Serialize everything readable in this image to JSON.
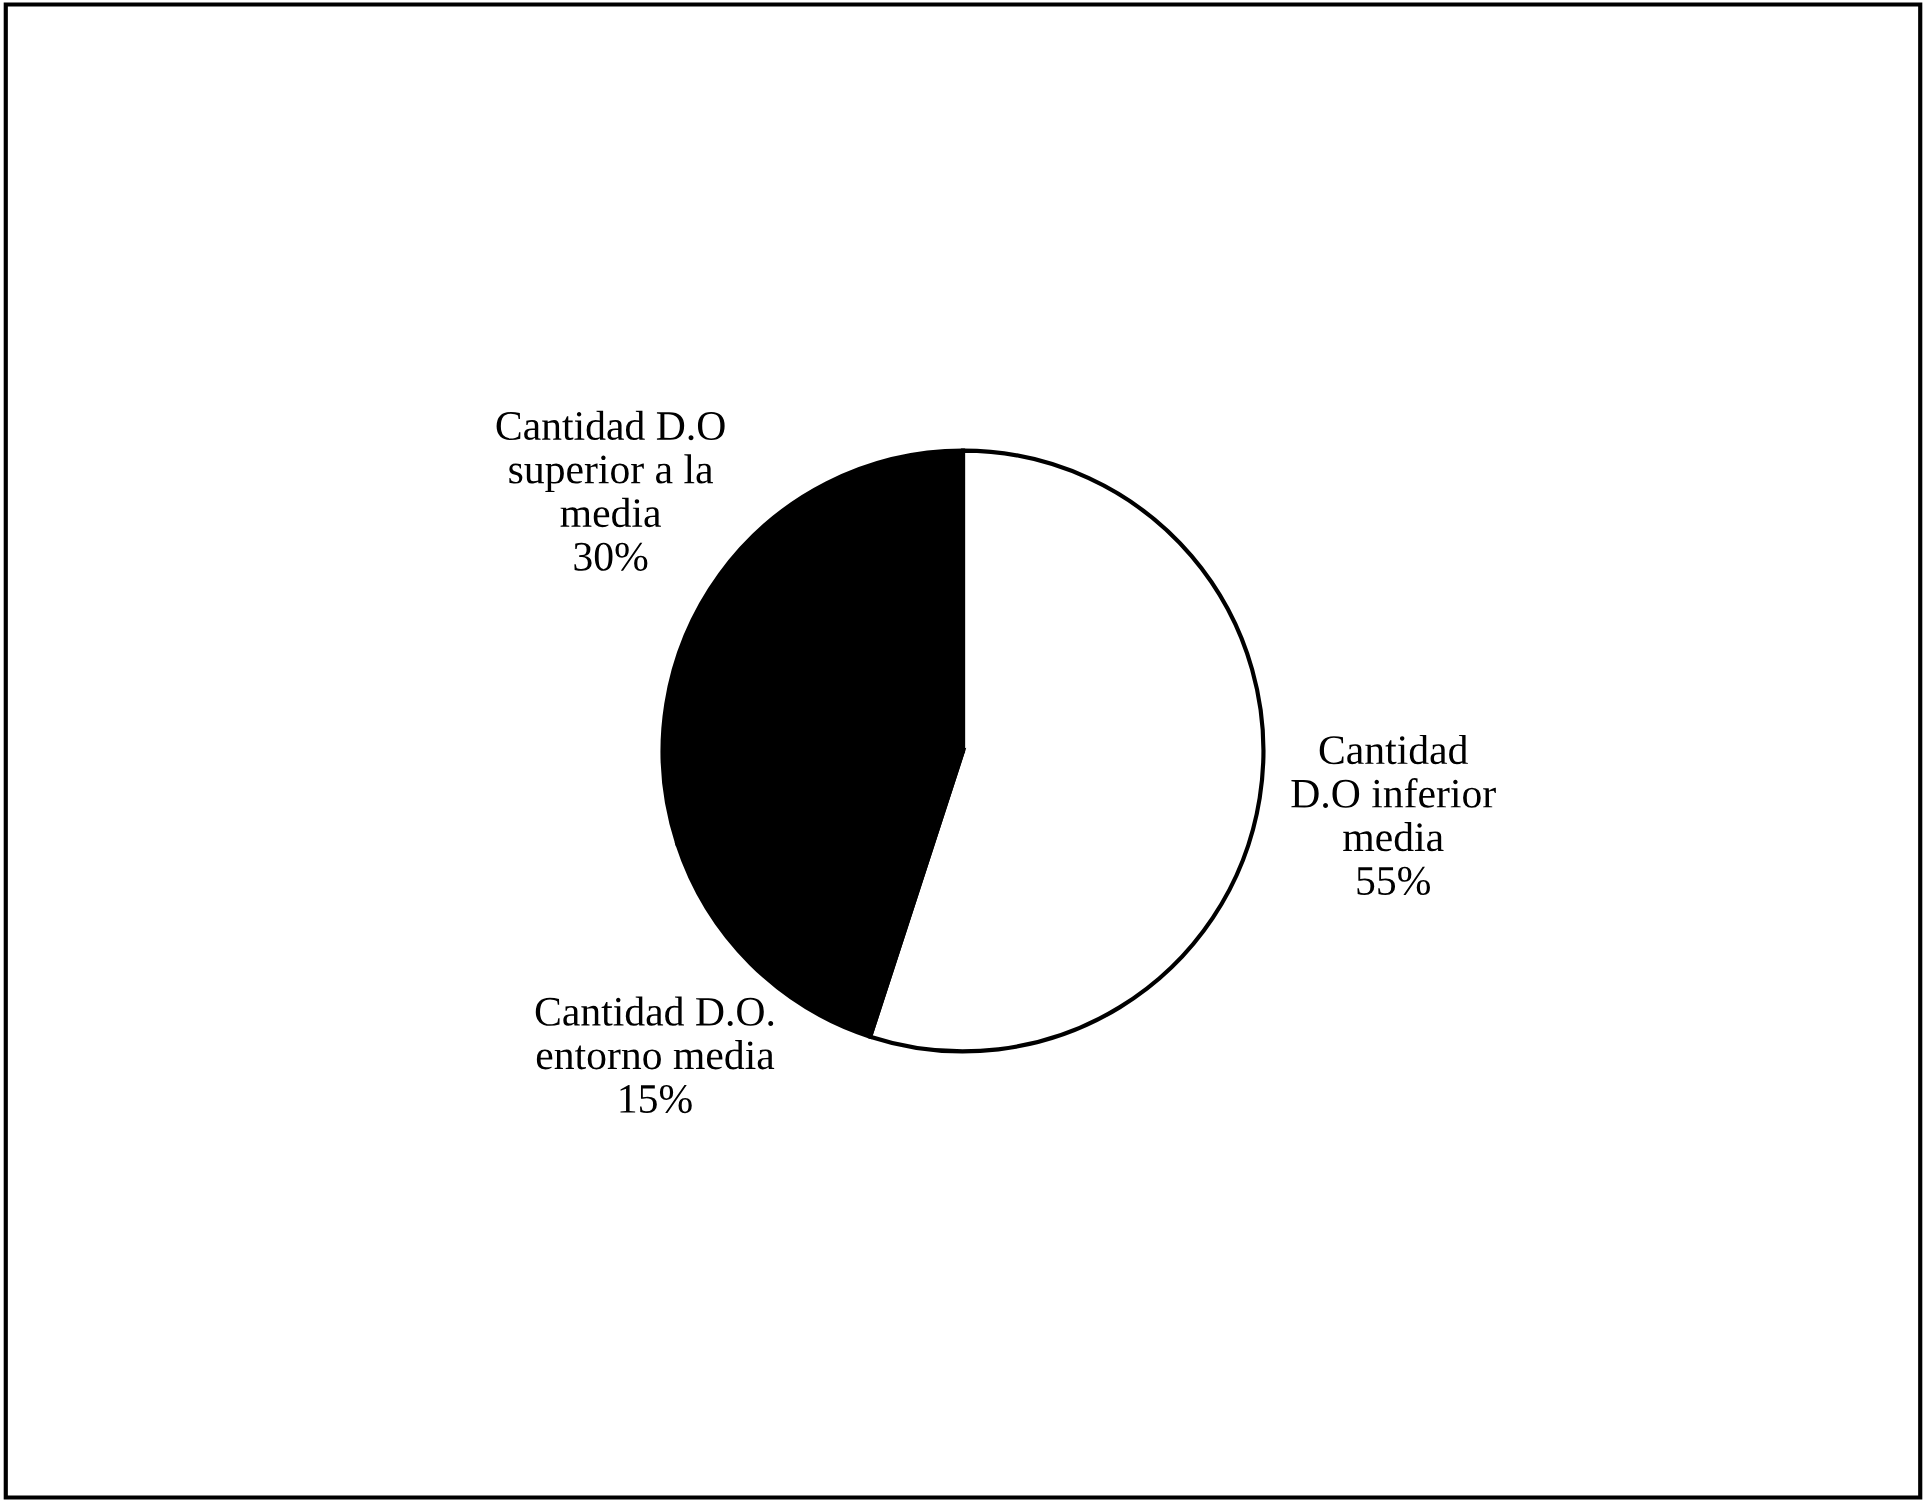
{
  "chart_data": {
    "type": "pie",
    "categories": [
      "Cantidad\nD.O inferior\nmedia",
      "Cantidad D.O.\nentorno media",
      "Cantidad D.O\nsuperior a la\nmedia"
    ],
    "values": [
      55,
      15,
      30
    ],
    "value_labels": [
      "55%",
      "15%",
      "30%"
    ],
    "colors": [
      "#ffffff",
      "#000000",
      "#000000"
    ]
  }
}
